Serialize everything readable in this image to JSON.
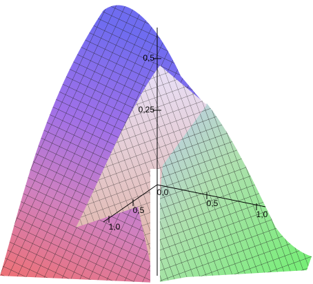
{
  "chart_data": {
    "type": "surface3d",
    "zticks": [
      {
        "value": 0.5,
        "label": "0,5"
      },
      {
        "value": 0.25,
        "label": "0,25"
      }
    ],
    "xticks": [
      {
        "value": 0,
        "label": "0,0"
      },
      {
        "value": 0.5,
        "label": "0,5"
      },
      {
        "value": 1,
        "label": "1,0"
      }
    ],
    "yticks": [
      {
        "value": 0.5,
        "label": "0,5"
      },
      {
        "value": 1,
        "label": "1,0"
      }
    ]
  }
}
